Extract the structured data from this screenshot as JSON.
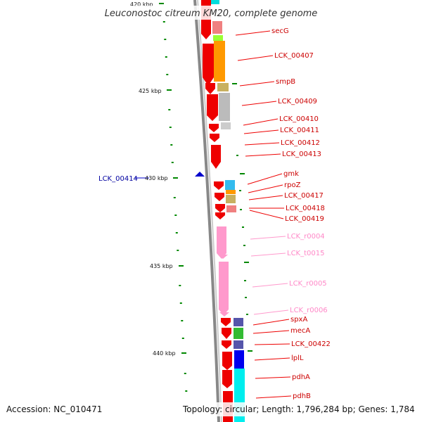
{
  "title": "Leuconostoc citreum KM20, complete genome",
  "footer": {
    "accession": "Accession: NC_010471",
    "topology": "Topology: circular; Length: 1,796,284 bp; Genes: 1,784"
  },
  "scale_labels": [
    "420 kbp",
    "425 kbp",
    "430 kbp",
    "435 kbp",
    "440 kbp"
  ],
  "left_gene": "LCK_00414",
  "genes": [
    {
      "label": "secG",
      "type": "cds"
    },
    {
      "label": "LCK_00407",
      "type": "cds"
    },
    {
      "label": "smpB",
      "type": "cds"
    },
    {
      "label": "LCK_00409",
      "type": "cds"
    },
    {
      "label": "LCK_00410",
      "type": "cds"
    },
    {
      "label": "LCK_00411",
      "type": "cds"
    },
    {
      "label": "LCK_00412",
      "type": "cds"
    },
    {
      "label": "LCK_00413",
      "type": "cds"
    },
    {
      "label": "gmk",
      "type": "cds"
    },
    {
      "label": "rpoZ",
      "type": "cds"
    },
    {
      "label": "LCK_00417",
      "type": "cds"
    },
    {
      "label": "LCK_00418",
      "type": "cds"
    },
    {
      "label": "LCK_00419",
      "type": "cds"
    },
    {
      "label": "LCK_r0004",
      "type": "rna"
    },
    {
      "label": "LCK_t0015",
      "type": "rna"
    },
    {
      "label": "LCK_r0005",
      "type": "rna"
    },
    {
      "label": "LCK_r0006",
      "type": "rna"
    },
    {
      "label": "spxA",
      "type": "cds"
    },
    {
      "label": "mecA",
      "type": "cds"
    },
    {
      "label": "LCK_00422",
      "type": "cds"
    },
    {
      "label": "lplL",
      "type": "cds"
    },
    {
      "label": "pdhA",
      "type": "cds"
    },
    {
      "label": "pdhB",
      "type": "cds"
    }
  ],
  "colors": {
    "cds": "#ee0000",
    "rna": "#ff99cc",
    "backbone": "#888888",
    "left_gene": "#0000cc",
    "tick": "#008800"
  }
}
